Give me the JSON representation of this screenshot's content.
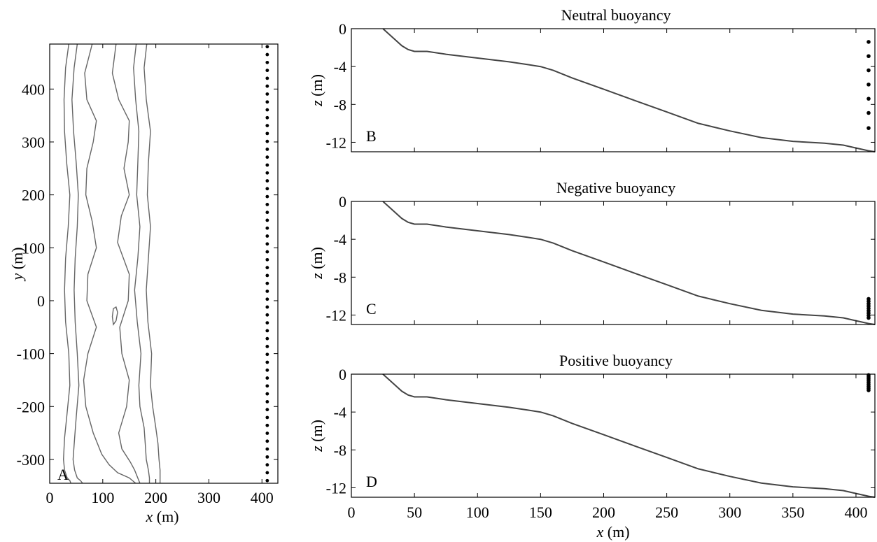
{
  "chart_data": [
    {
      "type": "contour",
      "panel_label": "A",
      "xlabel_var": "x",
      "xlabel_unit": " (m)",
      "ylabel_var": "y",
      "ylabel_unit": " (m)",
      "xlim": [
        0,
        430
      ],
      "ylim": [
        -345,
        485
      ],
      "xticks": [
        0,
        100,
        200,
        300,
        400
      ],
      "yticks": [
        400,
        300,
        200,
        100,
        0,
        -100,
        -200,
        -300
      ],
      "contours": [
        {
          "x": [
            36,
            30,
            27,
            28,
            32,
            38,
            35,
            30,
            28,
            30,
            36,
            38,
            32,
            28,
            26,
            28,
            33,
            38,
            40
          ],
          "y": [
            485,
            440,
            380,
            320,
            260,
            200,
            140,
            80,
            20,
            -40,
            -100,
            -160,
            -220,
            -260,
            -300,
            -320,
            -335,
            -340,
            -345
          ]
        },
        {
          "x": [
            52,
            46,
            42,
            45,
            50,
            54,
            52,
            48,
            46,
            48,
            52,
            55,
            50,
            47,
            44,
            47,
            52,
            58,
            62
          ],
          "y": [
            485,
            440,
            380,
            320,
            260,
            200,
            140,
            80,
            20,
            -40,
            -100,
            -160,
            -220,
            -260,
            -300,
            -320,
            -335,
            -340,
            -345
          ]
        },
        {
          "x": [
            80,
            66,
            70,
            88,
            82,
            70,
            68,
            80,
            88,
            72,
            70,
            88,
            72,
            64,
            68,
            82,
            98,
            112,
            128,
            150,
            162
          ],
          "y": [
            485,
            430,
            380,
            340,
            300,
            250,
            200,
            150,
            100,
            50,
            0,
            -50,
            -100,
            -150,
            -200,
            -250,
            -290,
            -310,
            -325,
            -335,
            -345
          ]
        },
        {
          "x": [
            125,
            118,
            130,
            150,
            148,
            140,
            150,
            135,
            128,
            150,
            148,
            132,
            136,
            150,
            145,
            130,
            136,
            152,
            160,
            170
          ],
          "y": [
            485,
            430,
            380,
            340,
            300,
            250,
            200,
            160,
            110,
            50,
            0,
            -50,
            -100,
            -150,
            -200,
            -250,
            -280,
            -305,
            -320,
            -345
          ]
        },
        {
          "x": [
            163,
            158,
            162,
            168,
            166,
            164,
            170,
            166,
            160,
            165,
            172,
            168,
            170,
            178,
            180,
            182,
            186,
            188,
            188
          ],
          "y": [
            485,
            440,
            380,
            320,
            260,
            200,
            140,
            80,
            20,
            -40,
            -100,
            -160,
            -200,
            -240,
            -270,
            -300,
            -320,
            -335,
            -345
          ]
        },
        {
          "x": [
            183,
            178,
            182,
            190,
            186,
            184,
            190,
            186,
            182,
            185,
            192,
            190,
            194,
            200,
            204,
            206,
            208,
            208,
            208
          ],
          "y": [
            485,
            440,
            380,
            320,
            260,
            200,
            140,
            80,
            20,
            -40,
            -100,
            -160,
            -200,
            -240,
            -270,
            -300,
            -320,
            -335,
            -345
          ]
        },
        {
          "x": [
            120,
            125,
            128,
            125,
            120,
            118,
            120
          ],
          "y": [
            -15,
            -12,
            -22,
            -38,
            -45,
            -30,
            -15
          ],
          "closed": true
        }
      ],
      "markers": {
        "x": 410,
        "y_start": -340,
        "y_end": 480,
        "count": 56
      }
    },
    {
      "type": "line",
      "panel_label": "B",
      "title": "Neutral buoyancy",
      "ylabel_var": "z",
      "ylabel_unit": " (m)",
      "xlim": [
        0,
        415
      ],
      "ylim": [
        -13,
        0
      ],
      "xticks": [
        0,
        50,
        100,
        150,
        200,
        250,
        300,
        350,
        400
      ],
      "yticks": [
        0,
        -4,
        -8,
        -12
      ],
      "ytick_labels": [
        "0",
        "-4",
        "-8",
        "-12"
      ],
      "bathymetry": {
        "x": [
          25,
          30,
          35,
          40,
          45,
          50,
          60,
          75,
          100,
          125,
          140,
          150,
          160,
          175,
          200,
          225,
          250,
          275,
          300,
          325,
          350,
          375,
          390,
          400,
          410,
          415
        ],
        "z": [
          0,
          -0.6,
          -1.2,
          -1.8,
          -2.2,
          -2.4,
          -2.4,
          -2.7,
          -3.1,
          -3.5,
          -3.8,
          -4.0,
          -4.4,
          -5.2,
          -6.4,
          -7.6,
          -8.8,
          -10.0,
          -10.8,
          -11.5,
          -11.9,
          -12.1,
          -12.3,
          -12.6,
          -12.9,
          -13.0
        ]
      },
      "points": {
        "x": [
          410,
          410,
          410,
          410,
          410,
          410,
          410
        ],
        "z": [
          -1.4,
          -2.9,
          -4.4,
          -5.9,
          -7.4,
          -8.9,
          -10.5
        ]
      }
    },
    {
      "type": "line",
      "panel_label": "C",
      "title": "Negative buoyancy",
      "ylabel_var": "z",
      "ylabel_unit": " (m)",
      "xlim": [
        0,
        415
      ],
      "ylim": [
        -13,
        0
      ],
      "xticks": [
        0,
        50,
        100,
        150,
        200,
        250,
        300,
        350,
        400
      ],
      "yticks": [
        0,
        -4,
        -8,
        -12
      ],
      "ytick_labels": [
        "0",
        "-4",
        "-8",
        "-12"
      ],
      "bathymetry": {
        "x": [
          25,
          30,
          35,
          40,
          45,
          50,
          60,
          75,
          100,
          125,
          140,
          150,
          160,
          175,
          200,
          225,
          250,
          275,
          300,
          325,
          350,
          375,
          390,
          400,
          410,
          415
        ],
        "z": [
          0,
          -0.6,
          -1.2,
          -1.8,
          -2.2,
          -2.4,
          -2.4,
          -2.7,
          -3.1,
          -3.5,
          -3.8,
          -4.0,
          -4.4,
          -5.2,
          -6.4,
          -7.6,
          -8.8,
          -10.0,
          -10.8,
          -11.5,
          -11.9,
          -12.1,
          -12.3,
          -12.6,
          -12.9,
          -13.0
        ]
      },
      "points": {
        "x": [
          410,
          410,
          410,
          410,
          410,
          410,
          410,
          410,
          410
        ],
        "z": [
          -10.3,
          -10.55,
          -10.8,
          -11.05,
          -11.3,
          -11.55,
          -11.8,
          -12.05,
          -12.3
        ]
      }
    },
    {
      "type": "line",
      "panel_label": "D",
      "title": "Positive buoyancy",
      "xlabel_var": "x",
      "xlabel_unit": " (m)",
      "ylabel_var": "z",
      "ylabel_unit": " (m)",
      "xlim": [
        0,
        415
      ],
      "ylim": [
        -13,
        0
      ],
      "xticks": [
        0,
        50,
        100,
        150,
        200,
        250,
        300,
        350,
        400
      ],
      "yticks": [
        0,
        -4,
        -8,
        -12
      ],
      "ytick_labels": [
        "0",
        "-4",
        "-8",
        "-12"
      ],
      "bathymetry": {
        "x": [
          25,
          30,
          35,
          40,
          45,
          50,
          60,
          75,
          100,
          125,
          140,
          150,
          160,
          175,
          200,
          225,
          250,
          275,
          300,
          325,
          350,
          375,
          390,
          400,
          410,
          415
        ],
        "z": [
          0,
          -0.6,
          -1.2,
          -1.8,
          -2.2,
          -2.4,
          -2.4,
          -2.7,
          -3.1,
          -3.5,
          -3.8,
          -4.0,
          -4.4,
          -5.2,
          -6.4,
          -7.6,
          -8.8,
          -10.0,
          -10.8,
          -11.5,
          -11.9,
          -12.1,
          -12.3,
          -12.6,
          -12.9,
          -13.0
        ]
      },
      "points": {
        "x": [
          410,
          410,
          410,
          410,
          410,
          410,
          410,
          410,
          410
        ],
        "z": [
          -0.1,
          -0.3,
          -0.5,
          -0.7,
          -0.9,
          -1.1,
          -1.3,
          -1.5,
          -1.7
        ]
      }
    }
  ]
}
